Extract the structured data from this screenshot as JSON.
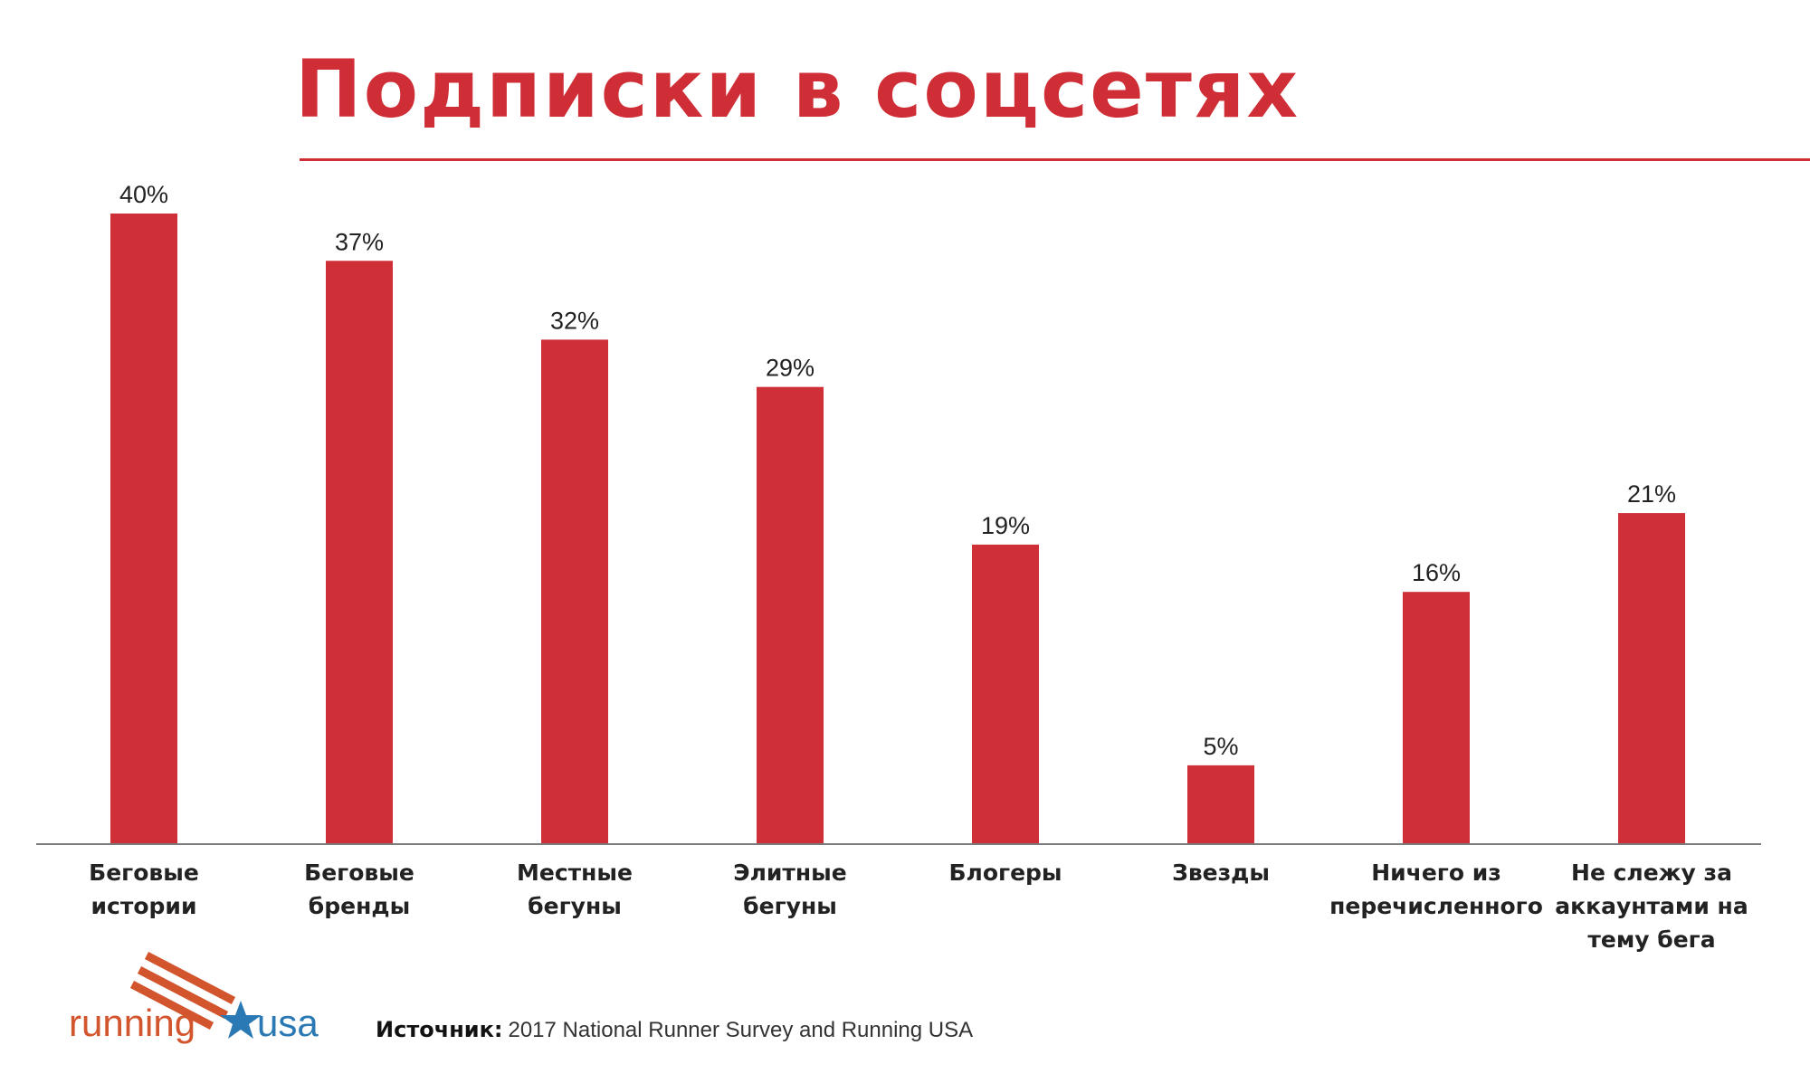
{
  "title": "Подписки в соцсетях",
  "colors": {
    "accent": "#cf2e36",
    "bar": "#cf3038",
    "axis": "#7a7a7a",
    "logo_blue": "#2a78b4",
    "logo_orange": "#d2552d"
  },
  "chart_data": {
    "type": "bar",
    "title": "Подписки в соцсетях",
    "xlabel": "",
    "ylabel": "",
    "ylim": [
      0,
      40
    ],
    "grid": false,
    "categories": [
      "Беговые\nистории",
      "Беговые\nбренды",
      "Местные\nбегуны",
      "Элитные\nбегуны",
      "Блогеры",
      "Звезды",
      "Ничего из\nперечисленного",
      "Не слежу за\nаккаунтами на\nтему бега"
    ],
    "values": [
      40,
      37,
      32,
      29,
      19,
      5,
      16,
      21
    ],
    "value_labels": [
      "40%",
      "37%",
      "32%",
      "29%",
      "19%",
      "5%",
      "16%",
      "21%"
    ]
  },
  "logo": {
    "icon": "running-usa-logo",
    "text_left": "running",
    "text_right": "usa"
  },
  "source": {
    "label": "Источник:",
    "text": "2017 National Runner Survey and Running USA"
  }
}
